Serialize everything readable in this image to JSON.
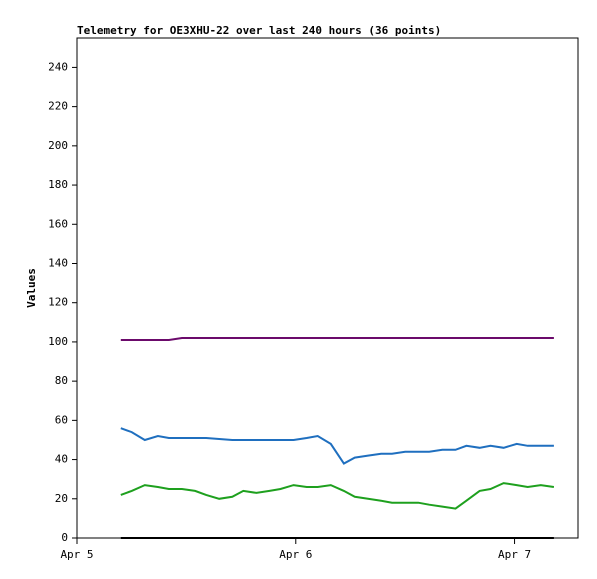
{
  "chart_data": {
    "type": "line",
    "title": "Telemetry for OE3XHU-22 over last 240 hours (36 points)",
    "y_label": "Values",
    "x": [
      0.2,
      0.25,
      0.31,
      0.37,
      0.42,
      0.48,
      0.54,
      0.59,
      0.65,
      0.71,
      0.76,
      0.82,
      0.88,
      0.93,
      0.99,
      1.05,
      1.1,
      1.16,
      1.22,
      1.27,
      1.33,
      1.39,
      1.44,
      1.5,
      1.56,
      1.61,
      1.67,
      1.73,
      1.78,
      1.84,
      1.89,
      1.95,
      2.01,
      2.06,
      2.12,
      2.18
    ],
    "xlim": [
      0,
      2.29
    ],
    "xticks": [
      {
        "value": 0,
        "label": "Apr 5"
      },
      {
        "value": 1,
        "label": "Apr 6"
      },
      {
        "value": 2,
        "label": "Apr 7"
      }
    ],
    "ylim": [
      0,
      255
    ],
    "yticks": [
      0,
      20,
      40,
      60,
      80,
      100,
      120,
      140,
      160,
      180,
      200,
      220,
      240
    ],
    "series": [
      {
        "color": "#6b0a6b",
        "values": [
          101,
          101,
          101,
          101,
          101,
          102,
          102,
          102,
          102,
          102,
          102,
          102,
          102,
          102,
          102,
          102,
          102,
          102,
          102,
          102,
          102,
          102,
          102,
          102,
          102,
          102,
          102,
          102,
          102,
          102,
          102,
          102,
          102,
          102,
          102,
          102
        ]
      },
      {
        "color": "#1f6fbf",
        "values": [
          56,
          54,
          50,
          52,
          51,
          51,
          51,
          51,
          50.5,
          50,
          50,
          50,
          50,
          50,
          50,
          51,
          52,
          48,
          38,
          41,
          42,
          43,
          43,
          44,
          44,
          44,
          45,
          45,
          47,
          46,
          47,
          46,
          48,
          47,
          47,
          47
        ]
      },
      {
        "color": "#1ea01e",
        "values": [
          22,
          24,
          27,
          26,
          25,
          25,
          24,
          22,
          20,
          21,
          24,
          23,
          24,
          25,
          27,
          26,
          26,
          27,
          24,
          21,
          20,
          19,
          18,
          18,
          18,
          17,
          16,
          15,
          19,
          24,
          25,
          28,
          27,
          26,
          27,
          26
        ]
      },
      {
        "color": "#000000",
        "values": [
          0,
          0,
          0,
          0,
          0,
          0,
          0,
          0,
          0,
          0,
          0,
          0,
          0,
          0,
          0,
          0,
          0,
          0,
          0,
          0,
          0,
          0,
          0,
          0,
          0,
          0,
          0,
          0,
          0,
          0,
          0,
          0,
          0,
          0,
          0,
          0
        ]
      }
    ]
  }
}
